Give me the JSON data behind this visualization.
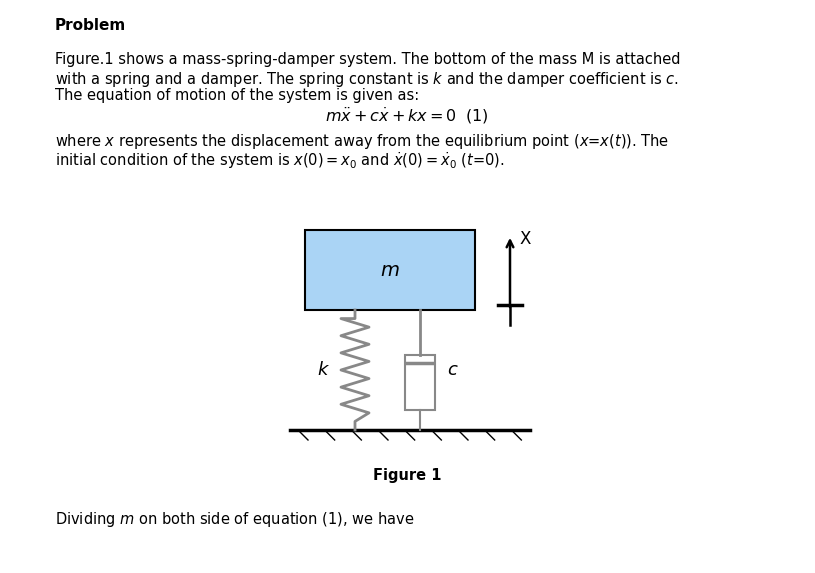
{
  "background_color": "#ffffff",
  "mass_color": "#aad4f5",
  "mass_edge_color": "#000000",
  "spring_color": "#888888",
  "damper_color": "#888888",
  "ground_color": "#000000",
  "label_m": "m",
  "label_k": "k",
  "label_c": "c",
  "label_x": "X",
  "figure_caption": "Figure 1"
}
